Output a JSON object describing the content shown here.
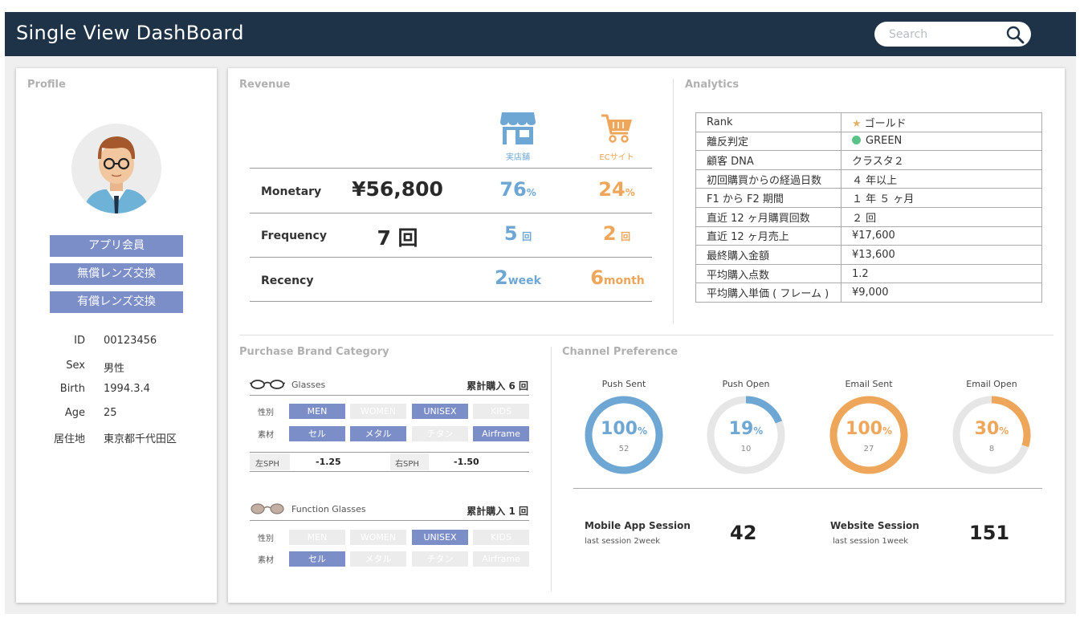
{
  "header": {
    "title": "Single View DashBoard",
    "search_placeholder": "Search"
  },
  "profile": {
    "section_title": "Profile",
    "buttons": [
      "アプリ会員",
      "無償レンズ交換",
      "有償レンズ交換"
    ],
    "info": [
      {
        "key": "ID",
        "value": "00123456"
      },
      {
        "key": "Sex",
        "value": "男性"
      },
      {
        "key": "Birth",
        "value": "1994.3.4"
      },
      {
        "key": "Age",
        "value": "25"
      },
      {
        "key": "居住地",
        "value": "東京都千代田区"
      }
    ]
  },
  "revenue": {
    "section_title": "Revenue",
    "store_label": "実店舗",
    "ec_label": "ECサイト",
    "rows": [
      {
        "label": "Monetary",
        "total": "¥56,800",
        "store_value": "76",
        "store_unit": "%",
        "ec_value": "24",
        "ec_unit": "%"
      },
      {
        "label": "Frequency",
        "total": "7 回",
        "store_value": "5",
        "store_unit": "回",
        "ec_value": "2",
        "ec_unit": "回"
      },
      {
        "label": "Recency",
        "total": "",
        "store_value": "2",
        "store_unit": "week",
        "ec_value": "6",
        "ec_unit": "month"
      }
    ],
    "colors": {
      "store": "#6ea7d4",
      "ec": "#eea65a"
    }
  },
  "analytics": {
    "section_title": "Analytics",
    "rows": [
      {
        "key": "Rank",
        "value": "ゴールド"
      },
      {
        "key": "離反判定",
        "value": "GREEN"
      },
      {
        "key": "顧客 DNA",
        "value": "クラスタ２"
      },
      {
        "key": "初回購買からの経過日数",
        "value": "４ 年以上"
      },
      {
        "key": "F1 から F2 期間",
        "value": "１ 年 ５ ヶ月"
      },
      {
        "key": "直近 12 ヶ月購買回数",
        "value": "２ 回"
      },
      {
        "key": "直近 12 ヶ月売上",
        "value": "¥17,600"
      },
      {
        "key": "最終購入金額",
        "value": "¥13,600"
      },
      {
        "key": "平均購入点数",
        "value": "1.2"
      },
      {
        "key": "平均購入単価 ( フレーム )",
        "value": "¥9,000"
      }
    ],
    "rank_star_color": "#e3b26a",
    "status_dot_color": "#5cc28a"
  },
  "brand": {
    "section_title": "Purchase Brand Category",
    "categories": [
      {
        "name": "Glasses",
        "total": "累計購入 6 回",
        "gender_label": "性別",
        "gender_chips": [
          {
            "label": "MEN",
            "on": true
          },
          {
            "label": "WOMEN",
            "on": false
          },
          {
            "label": "UNISEX",
            "on": true
          },
          {
            "label": "KIDS",
            "on": false
          }
        ],
        "material_label": "素材",
        "material_chips": [
          {
            "label": "セル",
            "on": true
          },
          {
            "label": "メタル",
            "on": true
          },
          {
            "label": "チタン",
            "on": false
          },
          {
            "label": "Airframe",
            "on": true
          }
        ],
        "sph_left_label": "左SPH",
        "sph_left_value": "-1.25",
        "sph_right_label": "右SPH",
        "sph_right_value": "-1.50"
      },
      {
        "name": "Function Glasses",
        "total": "累計購入 1 回",
        "gender_label": "性別",
        "gender_chips": [
          {
            "label": "MEN",
            "on": false
          },
          {
            "label": "WOMEN",
            "on": false
          },
          {
            "label": "UNISEX",
            "on": true
          },
          {
            "label": "KIDS",
            "on": false
          }
        ],
        "material_label": "素材",
        "material_chips": [
          {
            "label": "セル",
            "on": true
          },
          {
            "label": "メタル",
            "on": false
          },
          {
            "label": "チタン",
            "on": false
          },
          {
            "label": "Airframe",
            "on": false
          }
        ]
      }
    ]
  },
  "channel": {
    "section_title": "Channel Preference",
    "rings": [
      {
        "title": "Push Sent",
        "value": "100",
        "unit": "%",
        "fraction": 1.0,
        "count": "52",
        "color": "#6ea7d4"
      },
      {
        "title": "Push Open",
        "value": "19",
        "unit": "%",
        "fraction": 0.19,
        "count": "10",
        "color": "#6ea7d4"
      },
      {
        "title": "Email Sent",
        "value": "100",
        "unit": "%",
        "fraction": 1.0,
        "count": "27",
        "color": "#eea65a"
      },
      {
        "title": "Email Open",
        "value": "30",
        "unit": "%",
        "fraction": 0.3,
        "count": "8",
        "color": "#eea65a"
      }
    ],
    "ring_track_color": "#e6e6e6",
    "sessions": [
      {
        "title": "Mobile App Session",
        "sub": "last session 2week",
        "value": "42"
      },
      {
        "title": "Website Session",
        "sub": "last session 1week",
        "value": "151"
      }
    ]
  }
}
